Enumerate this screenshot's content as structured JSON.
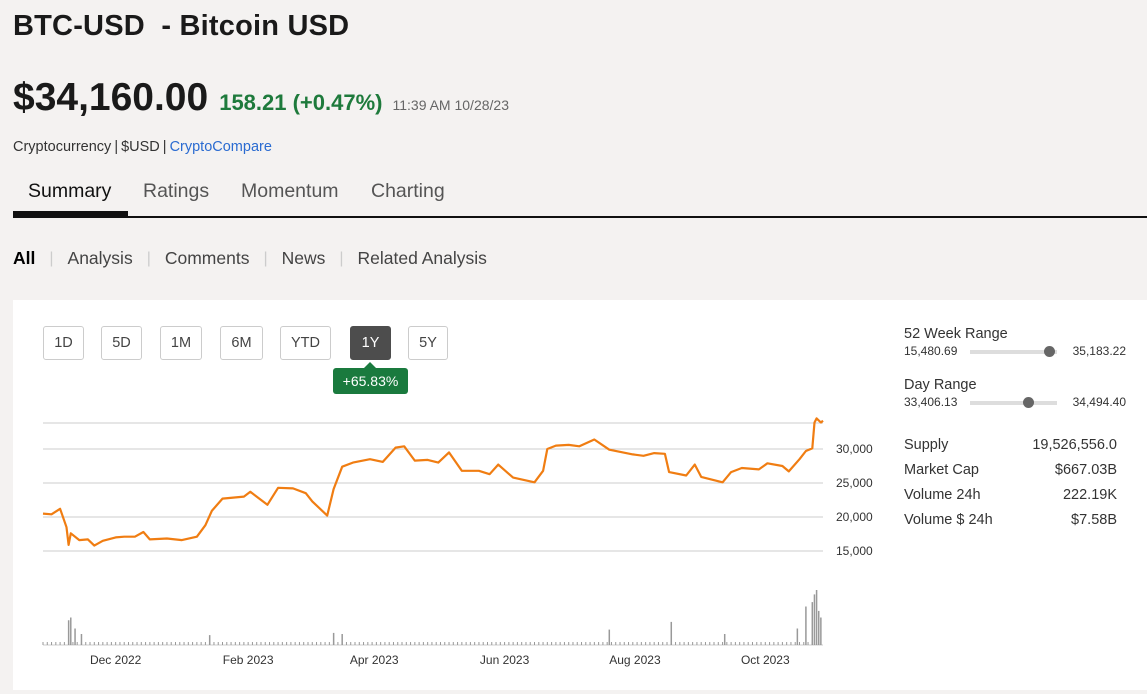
{
  "header": {
    "ticker": "BTC-USD",
    "name": "- Bitcoin USD",
    "price": "$34,160.00",
    "change": "158.21 (+0.47%)",
    "timestamp": "11:39 AM 10/28/23",
    "meta_type": "Cryptocurrency",
    "meta_currency": "$USD",
    "meta_source": "CryptoCompare",
    "change_color": "#1e7a3c"
  },
  "tabs": [
    {
      "label": "Summary",
      "active": true
    },
    {
      "label": "Ratings"
    },
    {
      "label": "Momentum"
    },
    {
      "label": "Charting"
    }
  ],
  "subtabs": [
    {
      "label": "All",
      "active": true
    },
    {
      "label": "Analysis"
    },
    {
      "label": "Comments"
    },
    {
      "label": "News"
    },
    {
      "label": "Related Analysis"
    }
  ],
  "range_buttons": [
    {
      "label": "1D"
    },
    {
      "label": "5D"
    },
    {
      "label": "1M"
    },
    {
      "label": "6M"
    },
    {
      "label": "YTD"
    },
    {
      "label": "1Y",
      "active": true
    },
    {
      "label": "5Y"
    }
  ],
  "performance_badge": "+65.83%",
  "stats": {
    "week52": {
      "label": "52 Week Range",
      "low": "15,480.69",
      "high": "35,183.22",
      "position": 0.91
    },
    "day": {
      "label": "Day Range",
      "low": "33,406.13",
      "high": "34,494.40",
      "position": 0.67
    },
    "rows": [
      {
        "label": "Supply",
        "value": "19,526,556.0"
      },
      {
        "label": "Market Cap",
        "value": "$667.03B"
      },
      {
        "label": "Volume 24h",
        "value": "222.19K"
      },
      {
        "label": "Volume $ 24h",
        "value": "$7.58B"
      }
    ]
  },
  "chart_data": {
    "type": "line",
    "line_color": "#f07d12",
    "ylim": [
      10000,
      35000
    ],
    "y_ticks": [
      "15,000",
      "20,000",
      "25,000",
      "30,000"
    ],
    "y_tick_values": [
      15000,
      20000,
      25000,
      30000
    ],
    "x_ticks": [
      "Dec 2022",
      "Feb 2023",
      "Apr 2023",
      "Jun 2023",
      "Aug 2023",
      "Oct 2023"
    ],
    "x_tick_dates": [
      "2022-12-01",
      "2023-02-01",
      "2023-04-01",
      "2023-06-01",
      "2023-08-01",
      "2023-10-01"
    ],
    "x_range": [
      "2022-10-28",
      "2023-10-28"
    ],
    "grid": true,
    "series": [
      {
        "points": [
          [
            "2022-10-28",
            20500
          ],
          [
            "2022-11-01",
            20400
          ],
          [
            "2022-11-05",
            21200
          ],
          [
            "2022-11-08",
            18500
          ],
          [
            "2022-11-09",
            15900
          ],
          [
            "2022-11-10",
            17600
          ],
          [
            "2022-11-14",
            16600
          ],
          [
            "2022-11-18",
            16700
          ],
          [
            "2022-11-21",
            15800
          ],
          [
            "2022-11-25",
            16500
          ],
          [
            "2022-12-01",
            17000
          ],
          [
            "2022-12-05",
            17100
          ],
          [
            "2022-12-10",
            17100
          ],
          [
            "2022-12-14",
            17800
          ],
          [
            "2022-12-17",
            16700
          ],
          [
            "2022-12-25",
            16840
          ],
          [
            "2023-01-01",
            16600
          ],
          [
            "2023-01-08",
            17100
          ],
          [
            "2023-01-12",
            18800
          ],
          [
            "2023-01-15",
            20900
          ],
          [
            "2023-01-20",
            22700
          ],
          [
            "2023-01-30",
            23000
          ],
          [
            "2023-02-02",
            23700
          ],
          [
            "2023-02-10",
            21800
          ],
          [
            "2023-02-15",
            24300
          ],
          [
            "2023-02-22",
            24200
          ],
          [
            "2023-02-28",
            23500
          ],
          [
            "2023-03-03",
            22300
          ],
          [
            "2023-03-10",
            20200
          ],
          [
            "2023-03-13",
            24100
          ],
          [
            "2023-03-17",
            27400
          ],
          [
            "2023-03-22",
            28000
          ],
          [
            "2023-03-30",
            28500
          ],
          [
            "2023-04-05",
            28100
          ],
          [
            "2023-04-11",
            30200
          ],
          [
            "2023-04-15",
            30400
          ],
          [
            "2023-04-20",
            28300
          ],
          [
            "2023-04-26",
            28400
          ],
          [
            "2023-05-01",
            28000
          ],
          [
            "2023-05-06",
            29500
          ],
          [
            "2023-05-12",
            26800
          ],
          [
            "2023-05-20",
            26800
          ],
          [
            "2023-05-25",
            26300
          ],
          [
            "2023-05-29",
            27700
          ],
          [
            "2023-06-05",
            25800
          ],
          [
            "2023-06-15",
            25100
          ],
          [
            "2023-06-19",
            26800
          ],
          [
            "2023-06-21",
            30000
          ],
          [
            "2023-06-25",
            30500
          ],
          [
            "2023-07-01",
            30600
          ],
          [
            "2023-07-06",
            30400
          ],
          [
            "2023-07-13",
            31400
          ],
          [
            "2023-07-20",
            29900
          ],
          [
            "2023-07-31",
            29200
          ],
          [
            "2023-08-05",
            29000
          ],
          [
            "2023-08-10",
            29400
          ],
          [
            "2023-08-15",
            29300
          ],
          [
            "2023-08-17",
            26600
          ],
          [
            "2023-08-25",
            26100
          ],
          [
            "2023-08-29",
            27700
          ],
          [
            "2023-09-01",
            25900
          ],
          [
            "2023-09-11",
            25100
          ],
          [
            "2023-09-15",
            26600
          ],
          [
            "2023-09-20",
            27200
          ],
          [
            "2023-09-28",
            27000
          ],
          [
            "2023-10-02",
            27900
          ],
          [
            "2023-10-09",
            27500
          ],
          [
            "2023-10-12",
            26700
          ],
          [
            "2023-10-17",
            28500
          ],
          [
            "2023-10-20",
            29700
          ],
          [
            "2023-10-23",
            30100
          ],
          [
            "2023-10-24",
            33900
          ],
          [
            "2023-10-25",
            34500
          ],
          [
            "2023-10-27",
            33900
          ],
          [
            "2023-10-28",
            34160
          ]
        ]
      }
    ],
    "volume": [
      [
        "2022-11-09",
        0.45
      ],
      [
        "2022-11-10",
        0.5
      ],
      [
        "2022-11-12",
        0.3
      ],
      [
        "2022-11-15",
        0.2
      ],
      [
        "2023-01-14",
        0.18
      ],
      [
        "2023-03-13",
        0.22
      ],
      [
        "2023-03-17",
        0.2
      ],
      [
        "2023-07-20",
        0.28
      ],
      [
        "2023-08-18",
        0.42
      ],
      [
        "2023-09-12",
        0.2
      ],
      [
        "2023-10-16",
        0.3
      ],
      [
        "2023-10-20",
        0.7
      ],
      [
        "2023-10-23",
        0.78
      ],
      [
        "2023-10-24",
        0.92
      ],
      [
        "2023-10-25",
        1.0
      ],
      [
        "2023-10-26",
        0.62
      ],
      [
        "2023-10-27",
        0.5
      ]
    ]
  }
}
